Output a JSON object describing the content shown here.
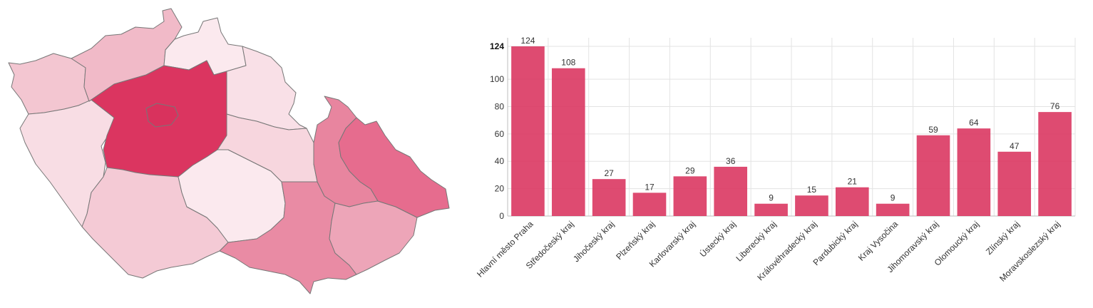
{
  "map": {
    "colors": {
      "c124": "#d9325d",
      "c108": "#db3560",
      "c76": "#e66c8e",
      "c64": "#e8859f",
      "c59": "#e98ba4",
      "c47": "#eda5b8",
      "c36": "#f1bac8",
      "c29": "#f3c6d1",
      "c27": "#f4cad5",
      "c21": "#f7d6de",
      "c17": "#f8dde4",
      "c15": "#f9e0e7",
      "c9": "#fbe9ee"
    },
    "regions": [
      {
        "id": "karlovarsky",
        "name": "Karlovarský kraj",
        "value": 29
      },
      {
        "id": "plzensky",
        "name": "Plzeňský kraj",
        "value": 17
      },
      {
        "id": "ustecky",
        "name": "Ústecký kraj",
        "value": 36
      },
      {
        "id": "liberecky",
        "name": "Liberecký kraj",
        "value": 9
      },
      {
        "id": "stredocesky",
        "name": "Středočeský kraj",
        "value": 108
      },
      {
        "id": "praha",
        "name": "Hlavní město Praha",
        "value": 124
      },
      {
        "id": "jihocesky",
        "name": "Jihočeský kraj",
        "value": 27
      },
      {
        "id": "vysocina",
        "name": "Kraj Vysočina",
        "value": 9
      },
      {
        "id": "kralovehradecky",
        "name": "Královéhradecký kraj",
        "value": 15
      },
      {
        "id": "pardubicky",
        "name": "Pardubický kraj",
        "value": 21
      },
      {
        "id": "jihomoravsky",
        "name": "Jihomoravský kraj",
        "value": 59
      },
      {
        "id": "olomoucky",
        "name": "Olomoucký kraj",
        "value": 64
      },
      {
        "id": "zlinsky",
        "name": "Zlínský kraj",
        "value": 47
      },
      {
        "id": "moravskoslezsky",
        "name": "Moravskoslezský kraj",
        "value": 76
      }
    ]
  },
  "chart_data": {
    "type": "bar",
    "categories": [
      "Hlavní město Praha",
      "Středočeský kraj",
      "Jihočeský kraj",
      "Plzeňský kraj",
      "Karlovarský kraj",
      "Ústecký kraj",
      "Liberecký kraj",
      "Královéhradecký kraj",
      "Pardubický kraj",
      "Kraj Vysočina",
      "Jihomoravský kraj",
      "Olomoucký kraj",
      "Zlínský kraj",
      "Moravskoslezský kraj"
    ],
    "values": [
      124,
      108,
      27,
      17,
      29,
      36,
      9,
      15,
      21,
      9,
      59,
      64,
      47,
      76
    ],
    "yticks": [
      0,
      20,
      40,
      60,
      80,
      100,
      124
    ],
    "ylim": [
      0,
      124
    ],
    "bar_color": "#d9325d",
    "grid": true,
    "title": "",
    "xlabel": "",
    "ylabel": ""
  }
}
